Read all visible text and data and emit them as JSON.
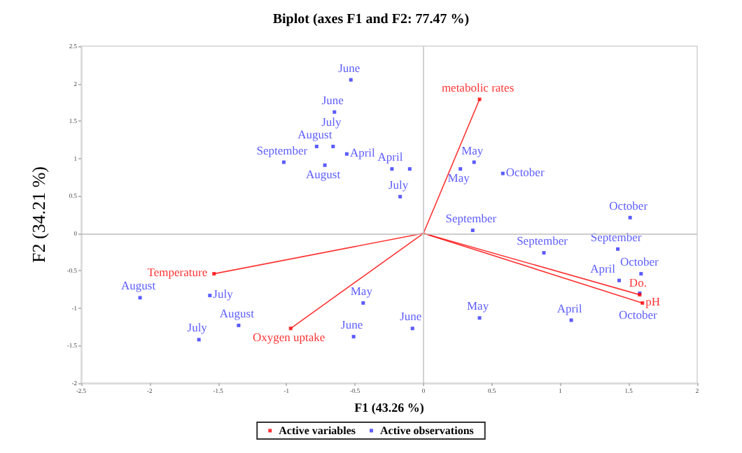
{
  "chart_data": {
    "type": "scatter",
    "title": "Biplot (axes F1 and F2: 77.47 %)",
    "xlabel": "F1 (43.26 %)",
    "ylabel": "F2 (34.21 %)",
    "xlim": [
      -2.5,
      2
    ],
    "xticks": [
      -2.5,
      -2,
      -1.5,
      -1,
      -0.5,
      0,
      0.5,
      1,
      1.5,
      2
    ],
    "ylim": [
      -2,
      2.5
    ],
    "yticks": [
      -2,
      -1.5,
      -1,
      -0.5,
      0,
      0.5,
      1,
      1.5,
      2,
      2.5
    ],
    "grid": false,
    "legend": "bottom",
    "marker": "square",
    "ref_lines": [
      {
        "axis": "x",
        "value": 0,
        "color": "#c8c8c8"
      },
      {
        "axis": "y",
        "value": 0,
        "color": "#bdbdbd"
      }
    ],
    "series": [
      {
        "name": "Active variables",
        "line_style": "solid",
        "color": "#ff0000",
        "x": [
          0.41,
          -1.53,
          -0.97,
          1.6,
          1.58
        ],
        "values": [
          1.79,
          -0.54,
          -1.27,
          -0.93,
          -0.82
        ],
        "value_labels": [
          "metabolic rates",
          "Temperature",
          "Oxygen uptake",
          "pH",
          "Do."
        ]
      },
      {
        "name": "Active observations",
        "color": "#3333ff",
        "x": [
          -0.53,
          -0.65,
          -0.78,
          -0.66,
          -1.02,
          -0.56,
          -0.23,
          -0.72,
          -0.17,
          -0.1,
          0.27,
          0.37,
          0.58,
          1.51,
          0.36,
          0.88,
          1.42,
          1.59,
          1.43,
          1.58,
          0.41,
          1.08,
          -0.08,
          -2.07,
          -1.56,
          -1.35,
          -1.64,
          -0.44,
          -0.51
        ],
        "values": [
          2.05,
          1.62,
          1.16,
          1.16,
          0.95,
          1.06,
          0.86,
          0.91,
          0.49,
          0.86,
          0.86,
          0.95,
          0.8,
          0.21,
          0.04,
          -0.26,
          -0.21,
          -0.54,
          -0.63,
          -0.8,
          -1.13,
          -1.16,
          -1.27,
          -0.86,
          -0.83,
          -1.23,
          -1.42,
          -0.93,
          -1.38
        ],
        "value_labels": [
          "June",
          "June",
          "August",
          "July",
          "September",
          "April",
          "April",
          "August",
          "July",
          null,
          "May",
          "May",
          "October",
          "October",
          "September",
          "September",
          "September",
          "October",
          "April",
          "October",
          "May",
          "April",
          "June",
          "August",
          "July",
          "August",
          "July",
          "May",
          "June"
        ]
      }
    ]
  }
}
